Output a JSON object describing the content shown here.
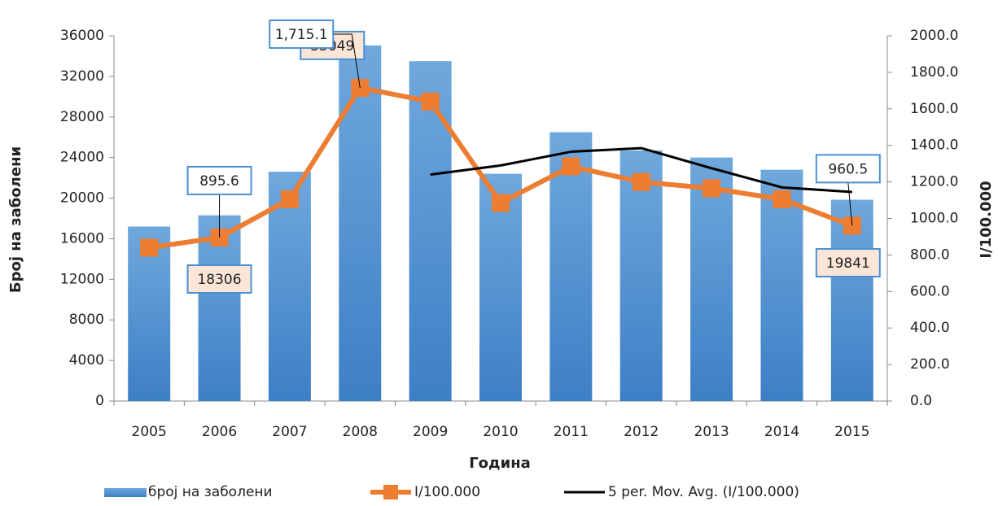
{
  "chart_data": {
    "type": "bar",
    "x_label": "Година",
    "y_label": "Број на заболени",
    "y2_label": "I/100.000",
    "categories": [
      "2005",
      "2006",
      "2007",
      "2008",
      "2009",
      "2010",
      "2011",
      "2012",
      "2013",
      "2014",
      "2015"
    ],
    "series": [
      {
        "name": "број на заболени",
        "type": "bar",
        "color": "#5b9bd5",
        "axis": "y",
        "values": [
          17200,
          18306,
          22600,
          35049,
          33500,
          22400,
          26500,
          24700,
          24000,
          22800,
          19841
        ],
        "value_labels": [
          null,
          "18306",
          null,
          "35049",
          null,
          null,
          null,
          null,
          null,
          null,
          "19841"
        ]
      },
      {
        "name": "I/100.000",
        "type": "line",
        "color": "#ed7d31",
        "axis": "y2",
        "marker": "square",
        "values": [
          840,
          895.6,
          1105,
          1715.1,
          1640,
          1085,
          1285,
          1200,
          1165,
          1105,
          960.5
        ],
        "value_labels": [
          null,
          "895.6",
          null,
          "1,715.1",
          null,
          null,
          null,
          null,
          null,
          null,
          "960.5"
        ]
      },
      {
        "name": "5 per. Mov. Avg. (I/100.000)",
        "type": "line",
        "color": "#000000",
        "axis": "y2",
        "values": [
          null,
          null,
          null,
          null,
          1240,
          1290,
          1365,
          1385,
          1275,
          1170,
          1145
        ]
      }
    ],
    "ylim": [
      0,
      36000
    ],
    "yticks": [
      0,
      4000,
      8000,
      12000,
      16000,
      20000,
      24000,
      28000,
      32000,
      36000
    ],
    "y2lim": [
      0,
      2000
    ],
    "y2ticks": [
      {
        "value": 0,
        "label": "0.0"
      },
      {
        "value": 200,
        "label": "200.0"
      },
      {
        "value": 400,
        "label": "400.0"
      },
      {
        "value": 600,
        "label": "600.0"
      },
      {
        "value": 800,
        "label": "800.0"
      },
      {
        "value": 1000,
        "label": "1000.0"
      },
      {
        "value": 1200,
        "label": "1200.0"
      },
      {
        "value": 1400,
        "label": "1400.0"
      },
      {
        "value": 1600,
        "label": "1600.0"
      },
      {
        "value": 1800,
        "label": "1800.0"
      },
      {
        "value": 2000,
        "label": "2000.0"
      }
    ],
    "grid": false,
    "legend": "bottom"
  }
}
